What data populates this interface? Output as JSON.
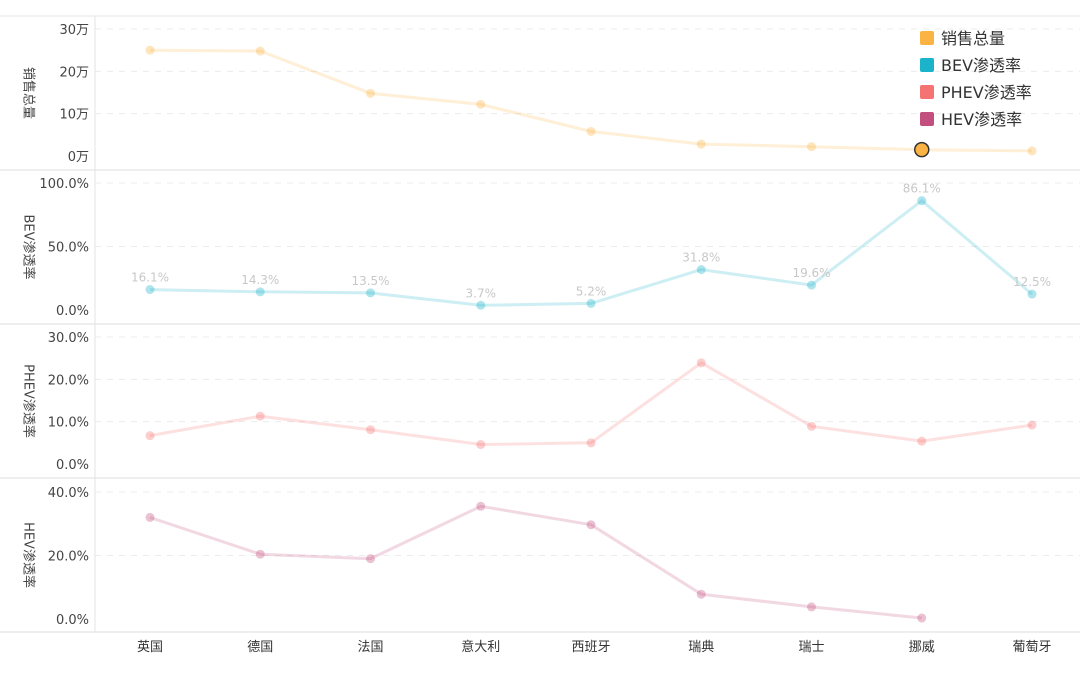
{
  "chart_data": {
    "type": "line",
    "categories": [
      "英国",
      "德国",
      "法国",
      "意大利",
      "西班牙",
      "瑞典",
      "瑞士",
      "挪威",
      "葡萄牙"
    ],
    "legend": {
      "placement": "top-right",
      "entries": [
        "销售总量",
        "BEV渗透率",
        "PHEV渗透率",
        "HEV渗透率"
      ]
    },
    "grid": "horizontal-dashed",
    "series": [
      {
        "name": "销售总量",
        "ylabel": "销售总量",
        "yticks": [
          "0万",
          "10万",
          "20万",
          "30万"
        ],
        "ylim": [
          0,
          300000
        ],
        "values": [
          250000,
          248000,
          148000,
          122000,
          58000,
          28000,
          22000,
          15000,
          12000
        ],
        "color": "#fbb444",
        "highlight_index": 7,
        "labels": [
          "",
          "",
          "",
          "",
          "",
          "",
          "",
          "",
          ""
        ]
      },
      {
        "name": "BEV渗透率",
        "ylabel": "BEV渗透率",
        "yticks": [
          "0.0%",
          "50.0%",
          "100.0%"
        ],
        "ylim": [
          0,
          100
        ],
        "values": [
          16.1,
          14.3,
          13.5,
          3.7,
          5.2,
          31.8,
          19.6,
          86.1,
          12.5
        ],
        "color": "#1ab3c9",
        "labels": [
          "16.1%",
          "14.3%",
          "13.5%",
          "3.7%",
          "5.2%",
          "31.8%",
          "19.6%",
          "86.1%",
          "12.5%"
        ]
      },
      {
        "name": "PHEV渗透率",
        "ylabel": "PHEV渗透率",
        "yticks": [
          "0.0%",
          "10.0%",
          "20.0%",
          "30.0%"
        ],
        "ylim": [
          0,
          30
        ],
        "values": [
          6.7,
          11.3,
          8.1,
          4.6,
          5.0,
          23.9,
          8.9,
          5.4,
          9.2
        ],
        "color": "#f57373",
        "labels": [
          "",
          "",
          "",
          "",
          "",
          "",
          "",
          "",
          ""
        ]
      },
      {
        "name": "HEV渗透率",
        "ylabel": "HEV渗透率",
        "yticks": [
          "0.0%",
          "20.0%",
          "40.0%"
        ],
        "ylim": [
          0,
          40
        ],
        "values": [
          32.0,
          20.4,
          19.0,
          35.5,
          29.7,
          7.8,
          3.8,
          0.3,
          null
        ],
        "color": "#c24f7d",
        "labels": [
          "",
          "",
          "",
          "",
          "",
          "",
          "",
          "",
          ""
        ]
      }
    ]
  }
}
